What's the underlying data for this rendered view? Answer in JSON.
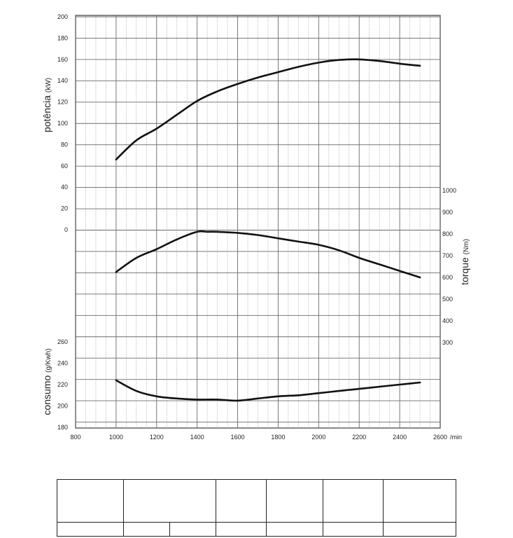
{
  "chart_data": {
    "type": "line",
    "title": "",
    "x_unit_label": "/min",
    "x_ticks": [
      "800",
      "1000",
      "1200",
      "1400",
      "1600",
      "1800",
      "2000",
      "2200",
      "2400",
      "2600"
    ],
    "xlim": [
      800,
      2600
    ],
    "axes": {
      "power": {
        "label": "potência",
        "unit": "(kW)",
        "ticks": [
          "200",
          "180",
          "160",
          "140",
          "120",
          "100",
          "80",
          "60",
          "40",
          "20",
          "0"
        ],
        "ylim": [
          0,
          200
        ]
      },
      "torque": {
        "label": "torque",
        "unit": "(Nm)",
        "ticks": [
          "1000",
          "900",
          "800",
          "700",
          "600",
          "500",
          "400",
          "300"
        ],
        "ylim": [
          300,
          1000
        ]
      },
      "consumption": {
        "label": "consumo",
        "unit": "(g/Kwh)",
        "ticks": [
          "260",
          "240",
          "220",
          "200",
          "180"
        ],
        "ylim": [
          180,
          260
        ]
      }
    },
    "series": [
      {
        "axis": "power",
        "x": [
          1000,
          1100,
          1200,
          1300,
          1400,
          1500,
          1600,
          1700,
          1800,
          1900,
          2000,
          2100,
          2200,
          2300,
          2400,
          2500
        ],
        "y": [
          66,
          84,
          95,
          108,
          121,
          130,
          137,
          143,
          148,
          153,
          157,
          159.5,
          160,
          158.5,
          156,
          154
        ]
      },
      {
        "axis": "torque",
        "x": [
          1000,
          1100,
          1200,
          1300,
          1400,
          1450,
          1500,
          1600,
          1700,
          1800,
          1900,
          2000,
          2100,
          2200,
          2300,
          2400,
          2500
        ],
        "y": [
          625,
          690,
          730,
          775,
          810,
          810,
          810,
          805,
          795,
          780,
          765,
          750,
          725,
          690,
          660,
          630,
          600
        ]
      },
      {
        "axis": "consumption",
        "x": [
          1000,
          1100,
          1200,
          1300,
          1400,
          1500,
          1600,
          1700,
          1800,
          1900,
          2000,
          2100,
          2200,
          2300,
          2400,
          2500
        ],
        "y": [
          224,
          214,
          209,
          207,
          206,
          206,
          205,
          207,
          209,
          210,
          212,
          214,
          216,
          218,
          220,
          222
        ]
      }
    ],
    "grid": true
  },
  "table": {
    "header_cells": [
      "",
      "",
      "",
      "",
      "",
      ""
    ],
    "body_cells": [
      "",
      "",
      "",
      "",
      "",
      "",
      ""
    ]
  }
}
